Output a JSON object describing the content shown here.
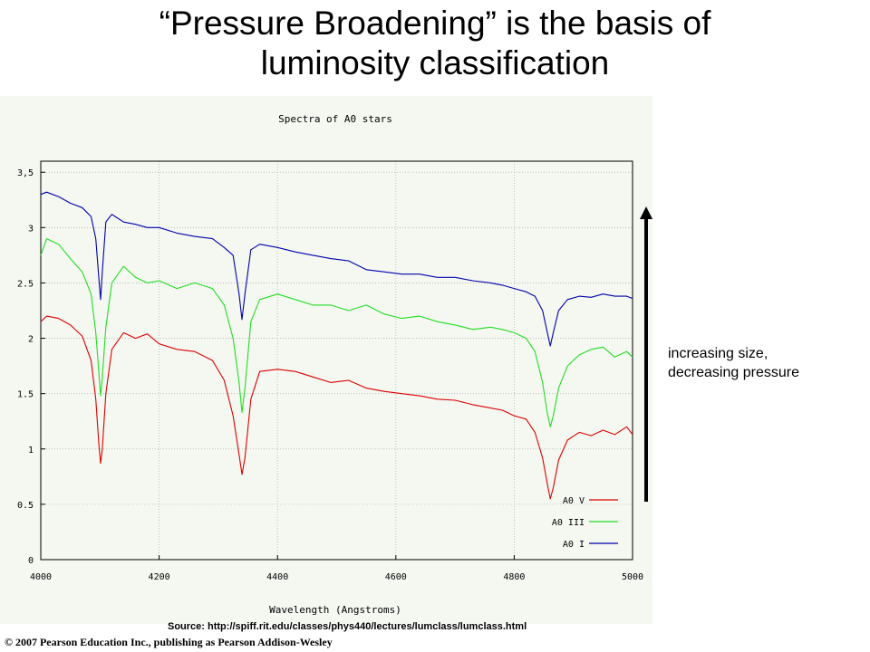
{
  "slide": {
    "title_line1": "“Pressure Broadening” is the basis of",
    "title_line2": "luminosity classification",
    "annotation_line1": "increasing size,",
    "annotation_line2": "decreasing pressure",
    "source": "Source: http://spiff.rit.edu/classes/phys440/lectures/lumclass/lumclass.html",
    "copyright": "© 2007 Pearson Education Inc., publishing as Pearson Addison-Wesley"
  },
  "chart_data": {
    "type": "line",
    "title": "Spectra of A0 stars",
    "xlabel": "Wavelength (Angstroms)",
    "ylabel": "",
    "xlim": [
      4000,
      5000
    ],
    "ylim": [
      0,
      3.6
    ],
    "xticks": [
      4000,
      4200,
      4400,
      4600,
      4800,
      5000
    ],
    "yticks": [
      0,
      0.5,
      1,
      1.5,
      2,
      2.5,
      3,
      3.5
    ],
    "ytick_labels": [
      "0",
      "0.5",
      "1",
      "1.5",
      "2",
      "2.5",
      "3",
      "3,5"
    ],
    "grid": true,
    "legend_position": "bottom-right",
    "series": [
      {
        "name": "A0 V",
        "color": "#dd0000",
        "x": [
          4000,
          4010,
          4030,
          4050,
          4070,
          4085,
          4093,
          4098,
          4101,
          4104,
          4110,
          4120,
          4140,
          4160,
          4180,
          4200,
          4230,
          4260,
          4290,
          4310,
          4325,
          4335,
          4340,
          4345,
          4355,
          4370,
          4400,
          4430,
          4460,
          4490,
          4520,
          4550,
          4580,
          4610,
          4640,
          4670,
          4700,
          4730,
          4760,
          4780,
          4800,
          4820,
          4835,
          4848,
          4856,
          4861,
          4866,
          4875,
          4890,
          4910,
          4930,
          4950,
          4970,
          4990,
          5000
        ],
        "y": [
          2.15,
          2.2,
          2.18,
          2.12,
          2.02,
          1.8,
          1.45,
          1.05,
          0.87,
          1.0,
          1.5,
          1.9,
          2.05,
          2.0,
          2.04,
          1.95,
          1.9,
          1.88,
          1.8,
          1.62,
          1.3,
          0.95,
          0.77,
          0.92,
          1.45,
          1.7,
          1.72,
          1.7,
          1.65,
          1.6,
          1.62,
          1.55,
          1.52,
          1.5,
          1.48,
          1.45,
          1.44,
          1.4,
          1.37,
          1.35,
          1.3,
          1.27,
          1.15,
          0.92,
          0.68,
          0.55,
          0.65,
          0.9,
          1.08,
          1.15,
          1.12,
          1.17,
          1.13,
          1.2,
          1.13
        ]
      },
      {
        "name": "A0 III",
        "color": "#22dd22",
        "x": [
          4000,
          4010,
          4030,
          4050,
          4070,
          4085,
          4093,
          4098,
          4101,
          4104,
          4110,
          4120,
          4140,
          4160,
          4180,
          4200,
          4230,
          4260,
          4290,
          4310,
          4325,
          4335,
          4340,
          4345,
          4355,
          4370,
          4400,
          4430,
          4460,
          4490,
          4520,
          4550,
          4580,
          4610,
          4640,
          4670,
          4700,
          4730,
          4760,
          4780,
          4800,
          4820,
          4835,
          4848,
          4856,
          4861,
          4866,
          4875,
          4890,
          4910,
          4930,
          4950,
          4970,
          4990,
          5000
        ],
        "y": [
          2.75,
          2.9,
          2.85,
          2.72,
          2.6,
          2.4,
          2.05,
          1.7,
          1.48,
          1.65,
          2.1,
          2.5,
          2.65,
          2.55,
          2.5,
          2.52,
          2.45,
          2.5,
          2.45,
          2.3,
          2.0,
          1.6,
          1.33,
          1.55,
          2.15,
          2.35,
          2.4,
          2.35,
          2.3,
          2.3,
          2.25,
          2.3,
          2.22,
          2.18,
          2.2,
          2.15,
          2.12,
          2.08,
          2.1,
          2.08,
          2.05,
          2.0,
          1.88,
          1.6,
          1.32,
          1.2,
          1.3,
          1.55,
          1.75,
          1.85,
          1.9,
          1.92,
          1.83,
          1.88,
          1.83
        ]
      },
      {
        "name": "A0 I",
        "color": "#0000aa",
        "x": [
          4000,
          4010,
          4030,
          4050,
          4070,
          4085,
          4093,
          4098,
          4101,
          4104,
          4110,
          4120,
          4140,
          4160,
          4180,
          4200,
          4230,
          4260,
          4290,
          4310,
          4325,
          4335,
          4340,
          4345,
          4355,
          4370,
          4400,
          4430,
          4460,
          4490,
          4520,
          4550,
          4580,
          4610,
          4640,
          4670,
          4700,
          4730,
          4760,
          4780,
          4800,
          4820,
          4835,
          4848,
          4856,
          4861,
          4866,
          4875,
          4890,
          4910,
          4930,
          4950,
          4970,
          4990,
          5000
        ],
        "y": [
          3.3,
          3.32,
          3.28,
          3.22,
          3.18,
          3.1,
          2.9,
          2.55,
          2.35,
          2.6,
          3.05,
          3.12,
          3.05,
          3.03,
          3.0,
          3.0,
          2.95,
          2.92,
          2.9,
          2.82,
          2.75,
          2.4,
          2.17,
          2.4,
          2.8,
          2.85,
          2.82,
          2.78,
          2.75,
          2.72,
          2.7,
          2.62,
          2.6,
          2.58,
          2.58,
          2.55,
          2.55,
          2.52,
          2.5,
          2.48,
          2.45,
          2.42,
          2.38,
          2.25,
          2.05,
          1.93,
          2.05,
          2.25,
          2.35,
          2.38,
          2.37,
          2.4,
          2.38,
          2.38,
          2.36
        ]
      }
    ]
  }
}
